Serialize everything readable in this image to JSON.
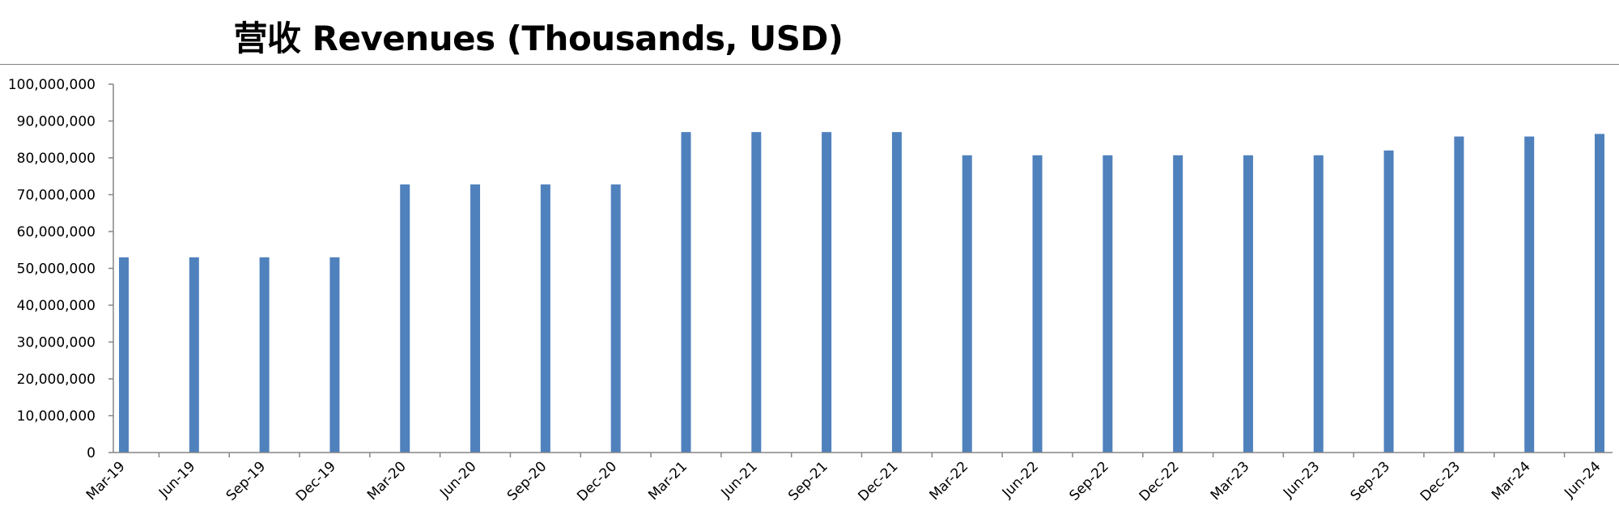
{
  "chart_data": {
    "type": "bar",
    "title": "营收 Revenues (Thousands, USD)",
    "categories": [
      "Mar-19",
      "Jun-19",
      "Sep-19",
      "Dec-19",
      "Mar-20",
      "Jun-20",
      "Sep-20",
      "Dec-20",
      "Mar-21",
      "Jun-21",
      "Sep-21",
      "Dec-21",
      "Mar-22",
      "Jun-22",
      "Sep-22",
      "Dec-22",
      "Mar-23",
      "Jun-23",
      "Sep-23",
      "Dec-23",
      "Mar-24",
      "Jun-24"
    ],
    "values": [
      53000000,
      53000000,
      53000000,
      53000000,
      72800000,
      72800000,
      72800000,
      72800000,
      87000000,
      87000000,
      87000000,
      87000000,
      80700000,
      80700000,
      80700000,
      80700000,
      80700000,
      80700000,
      82000000,
      85800000,
      85800000,
      86500000
    ],
    "y_tick_labels": [
      "0",
      "10,000,000",
      "20,000,000",
      "30,000,000",
      "40,000,000",
      "50,000,000",
      "60,000,000",
      "70,000,000",
      "80,000,000",
      "90,000,000",
      "100,000,000"
    ],
    "ylim": [
      0,
      100000000
    ],
    "xlabel": "",
    "ylabel": "",
    "legend": "none",
    "grid": false,
    "colors": {
      "bar": "#4f81bd",
      "axis": "#868686",
      "rule": "#808080"
    }
  }
}
